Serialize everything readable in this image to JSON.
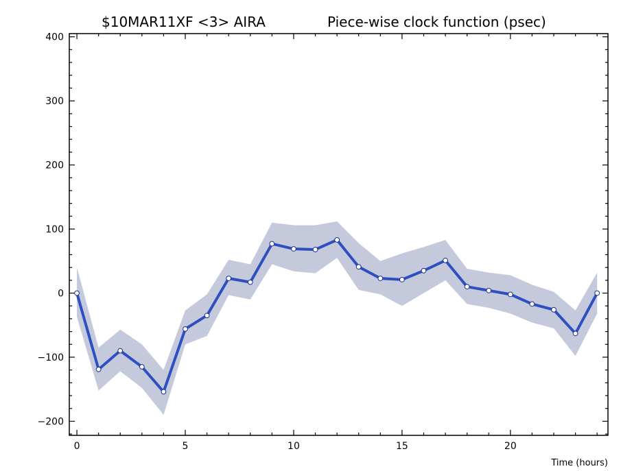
{
  "chart_data": {
    "type": "line",
    "title_left": "$10MAR11XF <3>  AIRA",
    "title_right": "Piece-wise clock function (psec)",
    "xlabel": "Time (hours)",
    "ylabel": "",
    "xlim": [
      -0.35,
      24.5
    ],
    "ylim": [
      -222,
      405
    ],
    "x_ticks": [
      0,
      5,
      10,
      15,
      20
    ],
    "y_ticks": [
      -200,
      -100,
      0,
      100,
      200,
      300,
      400
    ],
    "grid": false,
    "legend": "none",
    "x": [
      0,
      1,
      2,
      3,
      4,
      5,
      6,
      7,
      8,
      9,
      10,
      11,
      12,
      13,
      14,
      15,
      16,
      17,
      18,
      19,
      20,
      21,
      22,
      23,
      24
    ],
    "series": [
      {
        "values": [
          0,
          -119,
          -90,
          -115,
          -154,
          -56,
          -35,
          23,
          17,
          77,
          69,
          68,
          83,
          41,
          23,
          21,
          35,
          51,
          10,
          4,
          -2,
          -17,
          -26,
          -63,
          0
        ],
        "upper": [
          40,
          -85,
          -57,
          -80,
          -120,
          -27,
          -2,
          52,
          45,
          110,
          106,
          106,
          112,
          78,
          50,
          62,
          72,
          83,
          38,
          32,
          28,
          13,
          2,
          -27,
          32
        ],
        "lower": [
          -37,
          -152,
          -122,
          -148,
          -190,
          -80,
          -67,
          -3,
          -10,
          45,
          34,
          31,
          55,
          5,
          -2,
          -20,
          0,
          20,
          -17,
          -23,
          -32,
          -46,
          -55,
          -98,
          -32
        ]
      }
    ],
    "colors": {
      "line": "#2e4fbf",
      "band": "#c5c9dc",
      "frame": "#000000",
      "marker_fill": "#ffffff",
      "marker_stroke": "#1a2f8a"
    }
  }
}
